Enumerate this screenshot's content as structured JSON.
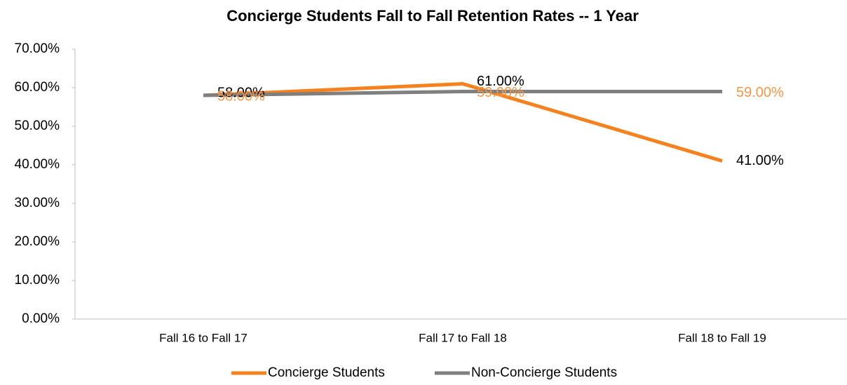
{
  "chart_data": {
    "type": "line",
    "title": "Concierge Students Fall to Fall Retention Rates -- 1 Year",
    "categories": [
      "Fall 16 to Fall 17",
      "Fall 17 to Fall 18",
      "Fall 18 to Fall 19"
    ],
    "series": [
      {
        "name": "Concierge Students",
        "color": "#f5821f",
        "label_color": "#000000",
        "values": [
          58,
          61,
          41
        ],
        "value_labels": [
          "58.00%",
          "61.00%",
          "41.00%"
        ]
      },
      {
        "name": "Non-Concierge Students",
        "color": "#7f7f7f",
        "label_color": "#f79646",
        "values": [
          58,
          59,
          59
        ],
        "value_labels": [
          "58.00%",
          "59.00%",
          "59.00%"
        ]
      }
    ],
    "ylim": [
      0,
      70
    ],
    "yticks": [
      {
        "value": 0,
        "label": "0.00%"
      },
      {
        "value": 10,
        "label": "10.00%"
      },
      {
        "value": 20,
        "label": "20.00%"
      },
      {
        "value": 30,
        "label": "30.00%"
      },
      {
        "value": 40,
        "label": "40.00%"
      },
      {
        "value": 50,
        "label": "50.00%"
      },
      {
        "value": 60,
        "label": "60.00%"
      },
      {
        "value": 70,
        "label": "70.00%"
      }
    ],
    "legend": "bottom"
  }
}
